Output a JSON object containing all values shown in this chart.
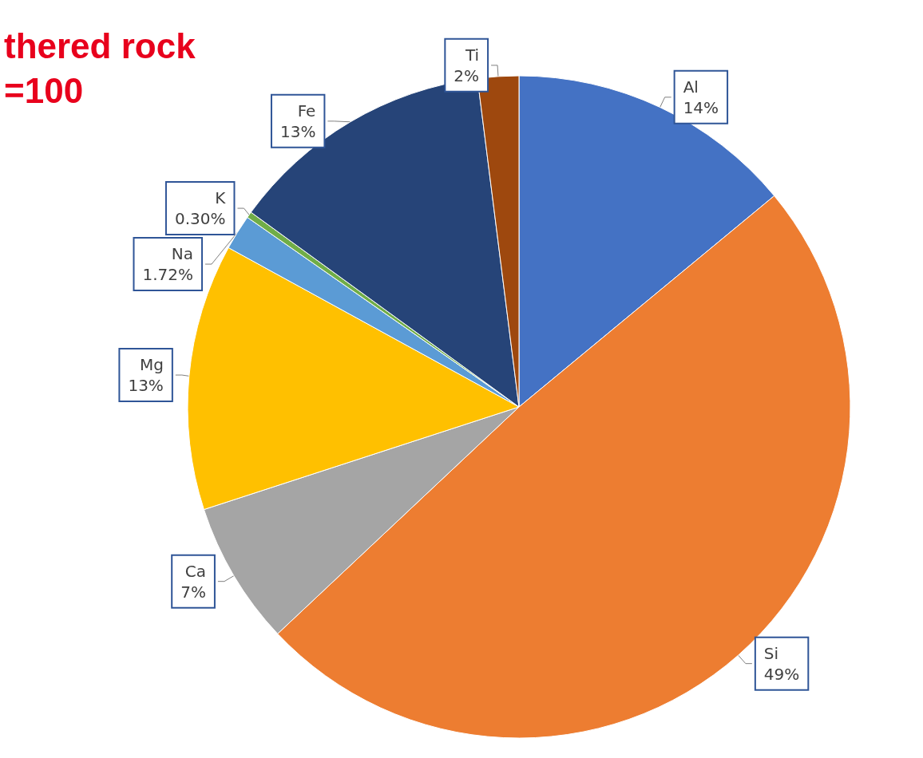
{
  "chart_data": {
    "type": "pie",
    "title": "thered rock",
    "subtitle": "=100",
    "categories": [
      "Al",
      "Si",
      "Ca",
      "Mg",
      "Na",
      "K",
      "Fe",
      "Ti"
    ],
    "values": [
      14,
      49,
      7,
      13,
      1.72,
      0.3,
      13,
      2
    ],
    "value_labels": [
      "14%",
      "49%",
      "7%",
      "13%",
      "1.72%",
      "0.30%",
      "13%",
      "2%"
    ],
    "colors": [
      "#4472c4",
      "#ed7d31",
      "#a5a5a5",
      "#ffc000",
      "#5b9bd5",
      "#70ad47",
      "#264478",
      "#9e480e"
    ],
    "legend": false
  }
}
